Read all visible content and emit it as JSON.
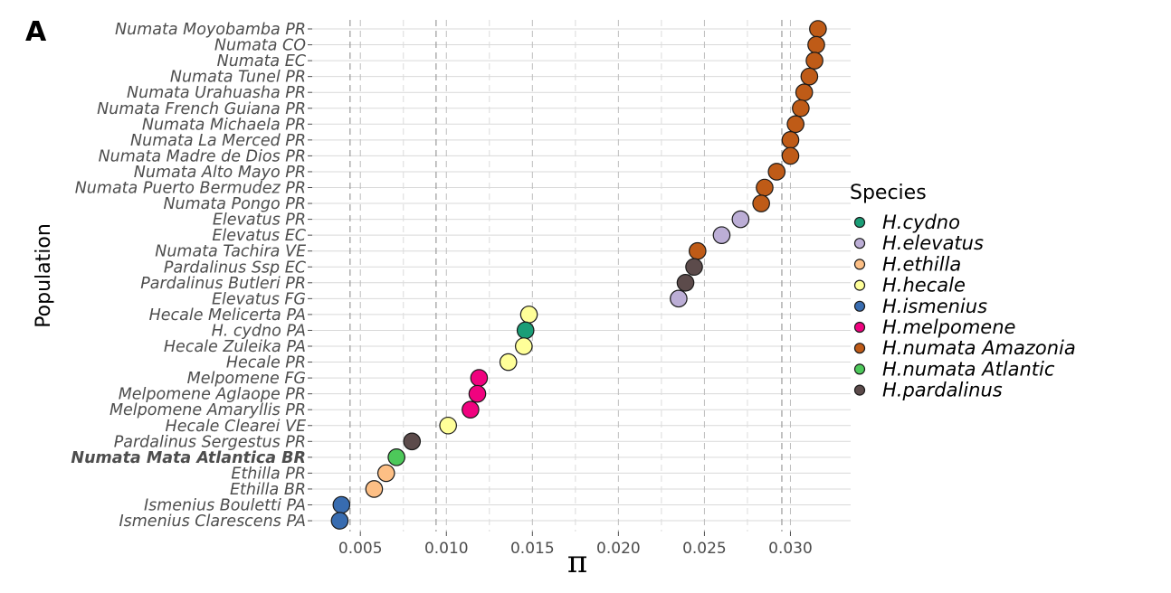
{
  "panel_label": "A",
  "chart_data": {
    "type": "scatter",
    "title": "",
    "xlabel": "π",
    "ylabel": "Population",
    "xlim": [
      0.0022,
      0.0335
    ],
    "x_ticks": [
      0.005,
      0.01,
      0.015,
      0.02,
      0.025,
      0.03
    ],
    "x_tick_labels": [
      "0.005",
      "0.010",
      "0.015",
      "0.020",
      "0.025",
      "0.030"
    ],
    "vertical_reference_lines": [
      0.0044,
      0.0094,
      0.0295
    ],
    "grid": true,
    "legend": {
      "title": "Species",
      "position": "right",
      "entries": [
        {
          "name": "H.cydno",
          "color": "#1b9e77"
        },
        {
          "name": "H.elevatus",
          "color": "#bcaed6"
        },
        {
          "name": "H.ethilla",
          "color": "#fdbf85"
        },
        {
          "name": "H.hecale",
          "color": "#ffff99"
        },
        {
          "name": "H.ismenius",
          "color": "#386cb0"
        },
        {
          "name": "H.melpomene",
          "color": "#f0027f"
        },
        {
          "name": "H.numata Amazonia",
          "color": "#bf5b17"
        },
        {
          "name": "H.numata Atlantic",
          "color": "#4dc85a"
        },
        {
          "name": "H.pardalinus",
          "color": "#5c4b4b"
        }
      ]
    },
    "points": [
      {
        "population": "Numata Moyobamba PR",
        "species": "H.numata Amazonia",
        "x": 0.0316
      },
      {
        "population": "Numata CO",
        "species": "H.numata Amazonia",
        "x": 0.0315
      },
      {
        "population": "Numata EC",
        "species": "H.numata Amazonia",
        "x": 0.0314
      },
      {
        "population": "Numata Tunel PR",
        "species": "H.numata Amazonia",
        "x": 0.0311
      },
      {
        "population": "Numata Urahuasha PR",
        "species": "H.numata Amazonia",
        "x": 0.0308
      },
      {
        "population": "Numata French Guiana PR",
        "species": "H.numata Amazonia",
        "x": 0.0306
      },
      {
        "population": "Numata Michaela PR",
        "species": "H.numata Amazonia",
        "x": 0.0303
      },
      {
        "population": "Numata La Merced PR",
        "species": "H.numata Amazonia",
        "x": 0.03
      },
      {
        "population": "Numata Madre de Dios PR",
        "species": "H.numata Amazonia",
        "x": 0.03
      },
      {
        "population": "Numata Alto Mayo PR",
        "species": "H.numata Amazonia",
        "x": 0.0292
      },
      {
        "population": "Numata Puerto Bermudez PR",
        "species": "H.numata Amazonia",
        "x": 0.0285
      },
      {
        "population": "Numata Pongo PR",
        "species": "H.numata Amazonia",
        "x": 0.0283
      },
      {
        "population": "Elevatus PR",
        "species": "H.elevatus",
        "x": 0.0271
      },
      {
        "population": "Elevatus EC",
        "species": "H.elevatus",
        "x": 0.026
      },
      {
        "population": "Numata Tachira VE",
        "species": "H.numata Amazonia",
        "x": 0.0246
      },
      {
        "population": "Pardalinus Ssp EC",
        "species": "H.pardalinus",
        "x": 0.0244
      },
      {
        "population": "Pardalinus Butleri PR",
        "species": "H.pardalinus",
        "x": 0.0239
      },
      {
        "population": "Elevatus FG",
        "species": "H.elevatus",
        "x": 0.0235
      },
      {
        "population": "Hecale Melicerta PA",
        "species": "H.hecale",
        "x": 0.0148
      },
      {
        "population": "H. cydno PA",
        "species": "H.cydno",
        "x": 0.0146
      },
      {
        "population": "Hecale Zuleika PA",
        "species": "H.hecale",
        "x": 0.0145
      },
      {
        "population": "Hecale PR",
        "species": "H.hecale",
        "x": 0.0136
      },
      {
        "population": "Melpomene FG",
        "species": "H.melpomene",
        "x": 0.0119
      },
      {
        "population": "Melpomene Aglaope PR",
        "species": "H.melpomene",
        "x": 0.0118
      },
      {
        "population": "Melpomene Amaryllis PR",
        "species": "H.melpomene",
        "x": 0.0114
      },
      {
        "population": "Hecale Clearei VE",
        "species": "H.hecale",
        "x": 0.0101
      },
      {
        "population": "Pardalinus Sergestus PR",
        "species": "H.pardalinus",
        "x": 0.008
      },
      {
        "population": "Numata Mata Atlantica BR",
        "species": "H.numata Atlantic",
        "x": 0.0071,
        "bold": true
      },
      {
        "population": "Ethilla PR",
        "species": "H.ethilla",
        "x": 0.0065
      },
      {
        "population": "Ethilla BR",
        "species": "H.ethilla",
        "x": 0.0058
      },
      {
        "population": "Ismenius Bouletti PA",
        "species": "H.ismenius",
        "x": 0.0039
      },
      {
        "population": "Ismenius Clarescens PA",
        "species": "H.ismenius",
        "x": 0.0038
      }
    ]
  }
}
